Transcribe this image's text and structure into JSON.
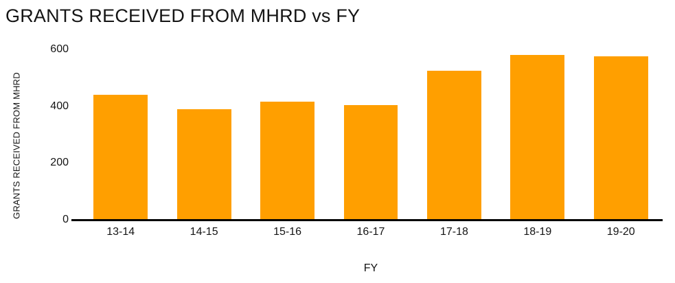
{
  "title": "GRANTS RECEIVED FROM MHRD vs FY",
  "chart_data": {
    "type": "bar",
    "categories": [
      "13-14",
      "14-15",
      "15-16",
      "16-17",
      "17-18",
      "18-19",
      "19-20"
    ],
    "values": [
      440,
      390,
      415,
      405,
      525,
      580,
      575
    ],
    "title": "GRANTS RECEIVED FROM MHRD vs FY",
    "xlabel": "FY",
    "ylabel": "GRANTS RECEIVED FROM MHRD",
    "ylim": [
      0,
      600
    ],
    "yticks": [
      0,
      200,
      400,
      600
    ],
    "bar_color": "#FF9F00",
    "axis_color": "#000000",
    "text_color": "#141414",
    "grid": false,
    "legend": false
  }
}
